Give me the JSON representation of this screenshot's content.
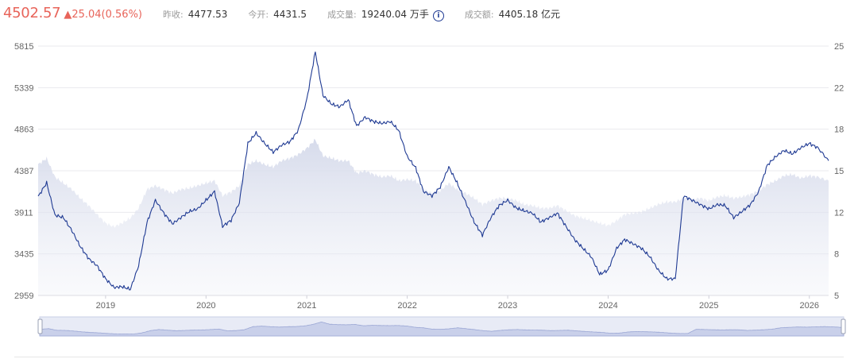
{
  "quote": {
    "price": "4502.57",
    "change": "▲25.04(0.56%)",
    "stats": [
      {
        "label": "昨收:",
        "value": "4477.53"
      },
      {
        "label": "今开:",
        "value": "4431.5"
      },
      {
        "label": "成交量:",
        "value": "19240.04 万手"
      },
      {
        "label": "成交额:",
        "value": "4405.18 亿元"
      }
    ],
    "info_icon": "info-icon"
  },
  "colors": {
    "up": "#e8645a",
    "line": "#1f3a93",
    "area": "#d7dcec",
    "grid": "#e9e9ee"
  },
  "chart_data": {
    "type": "line",
    "x": [
      "2018-05",
      "2018-06",
      "2018-07",
      "2018-08",
      "2018-09",
      "2018-10",
      "2018-11",
      "2018-12",
      "2019-01",
      "2019-02",
      "2019-03",
      "2019-04",
      "2019-05",
      "2019-06",
      "2019-07",
      "2019-08",
      "2019-09",
      "2019-10",
      "2019-11",
      "2019-12",
      "2020-01",
      "2020-02",
      "2020-03",
      "2020-04",
      "2020-05",
      "2020-06",
      "2020-07",
      "2020-08",
      "2020-09",
      "2020-10",
      "2020-11",
      "2020-12",
      "2021-01",
      "2021-02",
      "2021-03",
      "2021-04",
      "2021-05",
      "2021-06",
      "2021-07",
      "2021-08",
      "2021-09",
      "2021-10",
      "2021-11",
      "2021-12",
      "2022-01",
      "2022-02",
      "2022-03",
      "2022-04",
      "2022-05",
      "2022-06",
      "2022-07",
      "2022-08",
      "2022-09",
      "2022-10",
      "2022-11",
      "2022-12",
      "2023-01",
      "2023-02",
      "2023-03",
      "2023-04",
      "2023-05",
      "2023-06",
      "2023-07",
      "2023-08",
      "2023-09",
      "2023-10",
      "2023-11",
      "2023-12",
      "2024-01",
      "2024-02",
      "2024-03",
      "2024-04",
      "2024-05",
      "2024-06",
      "2024-07",
      "2024-08",
      "2024-09",
      "2024-10",
      "2024-11",
      "2024-12",
      "2025-01",
      "2025-02",
      "2025-03",
      "2025-04",
      "2025-05",
      "2025-06",
      "2025-07",
      "2025-08",
      "2025-09",
      "2025-10",
      "2025-11",
      "2025-12",
      "2026-01",
      "2026-02",
      "2026-03"
    ],
    "series": [
      {
        "axis": "left",
        "values": [
          4090,
          4250,
          3880,
          3850,
          3700,
          3520,
          3380,
          3300,
          3150,
          3050,
          3060,
          3030,
          3300,
          3800,
          4050,
          3900,
          3780,
          3850,
          3920,
          3950,
          4050,
          4150,
          3750,
          3820,
          4020,
          4700,
          4820,
          4700,
          4600,
          4680,
          4720,
          4850,
          5200,
          5750,
          5250,
          5150,
          5120,
          5200,
          4900,
          5000,
          4950,
          4930,
          4950,
          4850,
          4550,
          4420,
          4150,
          4100,
          4200,
          4430,
          4250,
          4030,
          3800,
          3650,
          3850,
          3990,
          4050,
          3960,
          3930,
          3900,
          3800,
          3850,
          3900,
          3750,
          3600,
          3500,
          3400,
          3200,
          3250,
          3500,
          3600,
          3550,
          3500,
          3400,
          3250,
          3150,
          3150,
          4100,
          4050,
          4000,
          3950,
          4000,
          3990,
          3850,
          3920,
          4000,
          4150,
          4450,
          4550,
          4620,
          4580,
          4650,
          4700,
          4650,
          4502.57
        ]
      },
      {
        "axis": "right",
        "type": "area",
        "values": [
          15.5,
          16,
          14.5,
          14,
          13.5,
          12.8,
          12.2,
          11.5,
          10.8,
          10.5,
          10.8,
          11.2,
          12,
          13.5,
          13.8,
          13.5,
          13.2,
          13.5,
          13.6,
          13.8,
          14.0,
          14.2,
          13,
          13.3,
          13.8,
          15.5,
          15.8,
          15.5,
          15.3,
          15.8,
          16,
          16.3,
          16.8,
          17.5,
          16.2,
          16,
          15.8,
          15.8,
          14.8,
          15,
          14.7,
          14.5,
          14.6,
          14.2,
          14.3,
          14.2,
          13.5,
          13.2,
          13.4,
          14,
          13.5,
          13.2,
          12.8,
          12.3,
          12.6,
          12.8,
          12.8,
          12.6,
          12.3,
          12.2,
          12,
          12,
          12.2,
          11.8,
          11.4,
          11.2,
          11,
          10.8,
          10.6,
          11,
          11.5,
          11.6,
          11.7,
          12,
          12.3,
          12.5,
          12.5,
          12.8,
          12.7,
          12.8,
          12.6,
          12.9,
          13.0,
          12.8,
          12.9,
          13.1,
          13.4,
          13.9,
          14.2,
          14.6,
          14.7,
          14.4,
          14.6,
          14.5,
          14.2
        ]
      }
    ],
    "x_ticks": [
      "2019",
      "2020",
      "2021",
      "2022",
      "2023",
      "2024",
      "2025",
      "2026"
    ],
    "y_left_ticks": [
      "2959",
      "3435",
      "3911",
      "4387",
      "4863",
      "5339",
      "5815"
    ],
    "y_right_ticks": [
      "5",
      "8",
      "12",
      "15",
      "18",
      "22",
      "25"
    ],
    "ylim_left": [
      2959,
      5815
    ],
    "ylim_right": [
      5,
      25
    ],
    "grid": "horizontal"
  }
}
